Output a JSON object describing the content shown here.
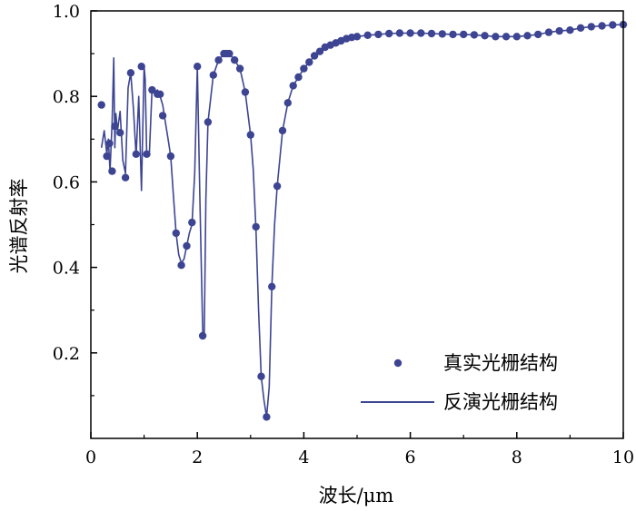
{
  "chart_data": {
    "type": "line",
    "title": "",
    "xlabel": "波长/μm",
    "ylabel": "光谱反射率",
    "xlim": [
      0,
      10
    ],
    "ylim": [
      0,
      1.0
    ],
    "x_ticks": [
      "0",
      "2",
      "4",
      "6",
      "8",
      "10"
    ],
    "y_ticks": [
      "0.2",
      "0.4",
      "0.6",
      "0.8",
      "1.0"
    ],
    "grid": false,
    "legend_position": "bottom-right",
    "color": "#3d4593",
    "series": [
      {
        "name": "真实光栅结构",
        "style": "markers",
        "x": [
          0.2,
          0.3,
          0.35,
          0.4,
          0.45,
          0.55,
          0.65,
          0.75,
          0.85,
          0.95,
          1.05,
          1.15,
          1.25,
          1.3,
          1.35,
          1.5,
          1.6,
          1.7,
          1.8,
          1.9,
          2.0,
          2.1,
          2.2,
          2.3,
          2.4,
          2.5,
          2.55,
          2.6,
          2.7,
          2.8,
          2.9,
          3.0,
          3.1,
          3.2,
          3.3,
          3.4,
          3.5,
          3.6,
          3.7,
          3.8,
          3.9,
          4.0,
          4.1,
          4.2,
          4.3,
          4.4,
          4.5,
          4.6,
          4.7,
          4.8,
          4.9,
          5.0,
          5.2,
          5.4,
          5.6,
          5.8,
          6.0,
          6.2,
          6.4,
          6.6,
          6.8,
          7.0,
          7.2,
          7.4,
          7.6,
          7.8,
          8.0,
          8.2,
          8.4,
          8.6,
          8.8,
          9.0,
          9.2,
          9.4,
          9.6,
          9.8,
          10.0
        ],
        "y": [
          0.78,
          0.66,
          0.69,
          0.625,
          0.73,
          0.715,
          0.61,
          0.855,
          0.665,
          0.87,
          0.665,
          0.815,
          0.805,
          0.805,
          0.755,
          0.66,
          0.48,
          0.405,
          0.45,
          0.505,
          0.87,
          0.24,
          0.74,
          0.85,
          0.885,
          0.9,
          0.9,
          0.9,
          0.885,
          0.865,
          0.81,
          0.71,
          0.495,
          0.145,
          0.05,
          0.355,
          0.59,
          0.72,
          0.785,
          0.825,
          0.845,
          0.865,
          0.88,
          0.895,
          0.905,
          0.915,
          0.92,
          0.925,
          0.93,
          0.935,
          0.938,
          0.94,
          0.943,
          0.945,
          0.947,
          0.948,
          0.948,
          0.948,
          0.947,
          0.946,
          0.945,
          0.945,
          0.944,
          0.942,
          0.94,
          0.94,
          0.94,
          0.942,
          0.945,
          0.95,
          0.953,
          0.955,
          0.96,
          0.963,
          0.965,
          0.967,
          0.968
        ]
      },
      {
        "name": "反演光栅结构",
        "style": "line",
        "x": [
          0.2,
          0.25,
          0.3,
          0.33,
          0.36,
          0.4,
          0.43,
          0.45,
          0.47,
          0.5,
          0.55,
          0.6,
          0.65,
          0.7,
          0.75,
          0.8,
          0.85,
          0.9,
          0.95,
          1.0,
          1.02,
          1.05,
          1.1,
          1.15,
          1.2,
          1.25,
          1.3,
          1.35,
          1.4,
          1.45,
          1.5,
          1.55,
          1.6,
          1.65,
          1.7,
          1.75,
          1.8,
          1.85,
          1.9,
          1.95,
          2.0,
          2.05,
          2.1,
          2.13,
          2.16,
          2.2,
          2.3,
          2.4,
          2.5,
          2.6,
          2.7,
          2.8,
          2.9,
          3.0,
          3.05,
          3.1,
          3.15,
          3.2,
          3.25,
          3.3,
          3.35,
          3.4,
          3.45,
          3.5,
          3.6,
          3.7,
          3.8,
          3.9,
          4.0,
          4.2,
          4.4,
          4.6,
          4.8,
          5.0,
          5.2,
          5.4,
          5.6,
          5.8,
          6.0,
          6.2,
          6.4,
          6.6,
          6.8,
          7.0,
          7.2,
          7.4,
          7.6,
          7.8,
          8.0,
          8.2,
          8.4,
          8.6,
          8.8,
          9.0,
          9.2,
          9.4,
          9.6,
          9.8,
          10.0
        ],
        "y": [
          0.68,
          0.72,
          0.665,
          0.7,
          0.625,
          0.74,
          0.89,
          0.68,
          0.76,
          0.72,
          0.765,
          0.65,
          0.62,
          0.82,
          0.855,
          0.77,
          0.66,
          0.8,
          0.58,
          0.87,
          0.84,
          0.66,
          0.67,
          0.82,
          0.81,
          0.815,
          0.8,
          0.78,
          0.74,
          0.7,
          0.66,
          0.57,
          0.48,
          0.43,
          0.41,
          0.42,
          0.45,
          0.48,
          0.5,
          0.62,
          0.87,
          0.55,
          0.25,
          0.24,
          0.56,
          0.74,
          0.85,
          0.885,
          0.9,
          0.9,
          0.885,
          0.865,
          0.81,
          0.71,
          0.63,
          0.49,
          0.3,
          0.145,
          0.09,
          0.05,
          0.12,
          0.355,
          0.5,
          0.59,
          0.72,
          0.785,
          0.825,
          0.845,
          0.865,
          0.895,
          0.915,
          0.925,
          0.935,
          0.94,
          0.943,
          0.945,
          0.947,
          0.948,
          0.948,
          0.948,
          0.947,
          0.946,
          0.945,
          0.945,
          0.944,
          0.942,
          0.94,
          0.94,
          0.94,
          0.942,
          0.945,
          0.95,
          0.953,
          0.955,
          0.96,
          0.963,
          0.965,
          0.967,
          0.968
        ]
      }
    ]
  }
}
